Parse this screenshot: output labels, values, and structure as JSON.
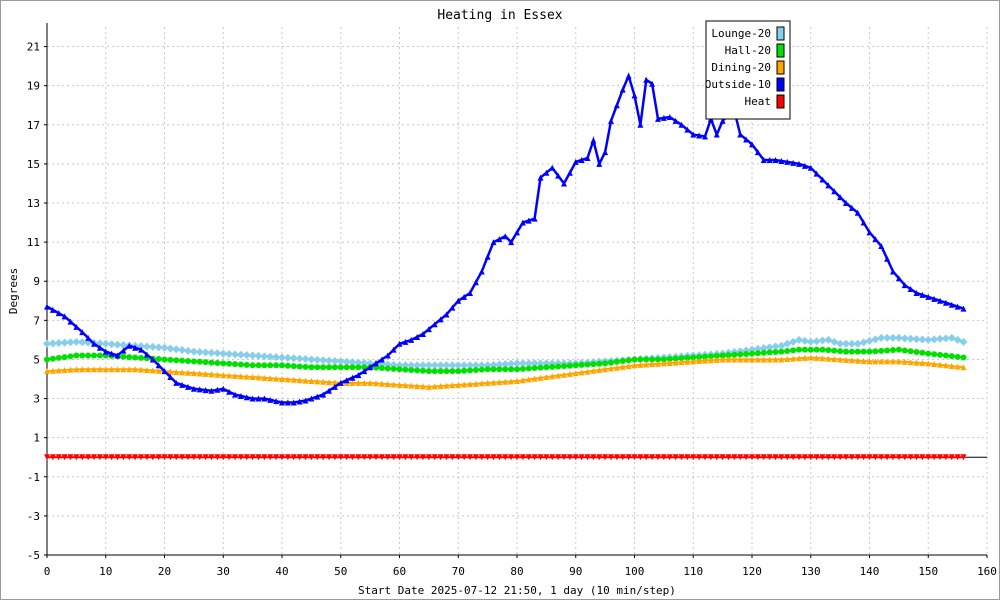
{
  "chart_data": {
    "type": "line",
    "title": "Heating in Essex",
    "xlabel": "Start Date 2025-07-12 21:50, 1 day (10 min/step)",
    "ylabel": "Degrees",
    "xlim": [
      0,
      160
    ],
    "ylim": [
      -5,
      22
    ],
    "x_ticks": [
      0,
      10,
      20,
      30,
      40,
      50,
      60,
      70,
      80,
      90,
      100,
      110,
      120,
      130,
      140,
      150,
      160
    ],
    "y_ticks": [
      -5,
      -3,
      -1,
      1,
      3,
      5,
      7,
      9,
      11,
      13,
      15,
      17,
      19,
      21
    ],
    "grid": true,
    "legend_position": "top-right",
    "series": [
      {
        "name": "Lounge-20",
        "color": "#87ceeb",
        "marker": "diamond",
        "points": [
          [
            0,
            5.8
          ],
          [
            5,
            5.9
          ],
          [
            10,
            5.8
          ],
          [
            15,
            5.7
          ],
          [
            20,
            5.6
          ],
          [
            25,
            5.4
          ],
          [
            30,
            5.3
          ],
          [
            35,
            5.2
          ],
          [
            40,
            5.1
          ],
          [
            45,
            5.0
          ],
          [
            50,
            4.9
          ],
          [
            55,
            4.8
          ],
          [
            60,
            4.7
          ],
          [
            65,
            4.7
          ],
          [
            70,
            4.7
          ],
          [
            75,
            4.7
          ],
          [
            80,
            4.8
          ],
          [
            85,
            4.8
          ],
          [
            90,
            4.8
          ],
          [
            95,
            4.9
          ],
          [
            100,
            5.0
          ],
          [
            105,
            5.1
          ],
          [
            110,
            5.2
          ],
          [
            115,
            5.3
          ],
          [
            120,
            5.5
          ],
          [
            125,
            5.7
          ],
          [
            128,
            6.0
          ],
          [
            130,
            5.9
          ],
          [
            133,
            6.0
          ],
          [
            135,
            5.8
          ],
          [
            138,
            5.8
          ],
          [
            142,
            6.1
          ],
          [
            145,
            6.1
          ],
          [
            150,
            6.0
          ],
          [
            154,
            6.1
          ],
          [
            156,
            5.9
          ]
        ]
      },
      {
        "name": "Hall-20",
        "color": "#00e000",
        "marker": "circle",
        "points": [
          [
            0,
            5.0
          ],
          [
            5,
            5.2
          ],
          [
            10,
            5.2
          ],
          [
            15,
            5.1
          ],
          [
            20,
            5.0
          ],
          [
            25,
            4.9
          ],
          [
            30,
            4.8
          ],
          [
            35,
            4.7
          ],
          [
            40,
            4.7
          ],
          [
            45,
            4.6
          ],
          [
            50,
            4.6
          ],
          [
            55,
            4.6
          ],
          [
            60,
            4.5
          ],
          [
            65,
            4.4
          ],
          [
            70,
            4.4
          ],
          [
            75,
            4.5
          ],
          [
            80,
            4.5
          ],
          [
            85,
            4.6
          ],
          [
            90,
            4.7
          ],
          [
            95,
            4.8
          ],
          [
            100,
            5.0
          ],
          [
            105,
            5.0
          ],
          [
            110,
            5.1
          ],
          [
            115,
            5.2
          ],
          [
            120,
            5.3
          ],
          [
            125,
            5.4
          ],
          [
            128,
            5.5
          ],
          [
            132,
            5.5
          ],
          [
            136,
            5.4
          ],
          [
            140,
            5.4
          ],
          [
            145,
            5.5
          ],
          [
            150,
            5.3
          ],
          [
            156,
            5.1
          ]
        ]
      },
      {
        "name": "Dining-20",
        "color": "#ffa500",
        "marker": "triangle-up",
        "points": [
          [
            0,
            4.4
          ],
          [
            5,
            4.5
          ],
          [
            10,
            4.5
          ],
          [
            15,
            4.5
          ],
          [
            20,
            4.4
          ],
          [
            25,
            4.3
          ],
          [
            30,
            4.2
          ],
          [
            35,
            4.1
          ],
          [
            40,
            4.0
          ],
          [
            45,
            3.9
          ],
          [
            50,
            3.8
          ],
          [
            55,
            3.8
          ],
          [
            60,
            3.7
          ],
          [
            65,
            3.6
          ],
          [
            70,
            3.7
          ],
          [
            75,
            3.8
          ],
          [
            80,
            3.9
          ],
          [
            85,
            4.1
          ],
          [
            90,
            4.3
          ],
          [
            95,
            4.5
          ],
          [
            100,
            4.7
          ],
          [
            105,
            4.8
          ],
          [
            110,
            4.9
          ],
          [
            115,
            5.0
          ],
          [
            120,
            5.0
          ],
          [
            125,
            5.0
          ],
          [
            130,
            5.1
          ],
          [
            135,
            5.0
          ],
          [
            140,
            4.9
          ],
          [
            145,
            4.9
          ],
          [
            150,
            4.8
          ],
          [
            156,
            4.6
          ]
        ]
      },
      {
        "name": "Outside-10",
        "color": "#0000ff",
        "marker": "triangle-up",
        "points": [
          [
            0,
            7.7
          ],
          [
            3,
            7.2
          ],
          [
            6,
            6.4
          ],
          [
            8,
            5.8
          ],
          [
            10,
            5.4
          ],
          [
            12,
            5.2
          ],
          [
            14,
            5.7
          ],
          [
            16,
            5.5
          ],
          [
            18,
            5.0
          ],
          [
            20,
            4.4
          ],
          [
            22,
            3.8
          ],
          [
            25,
            3.5
          ],
          [
            28,
            3.4
          ],
          [
            30,
            3.5
          ],
          [
            32,
            3.2
          ],
          [
            35,
            3.0
          ],
          [
            37,
            3.0
          ],
          [
            40,
            2.8
          ],
          [
            42,
            2.8
          ],
          [
            44,
            2.9
          ],
          [
            47,
            3.2
          ],
          [
            50,
            3.8
          ],
          [
            53,
            4.2
          ],
          [
            56,
            4.8
          ],
          [
            58,
            5.2
          ],
          [
            60,
            5.8
          ],
          [
            62,
            6.0
          ],
          [
            64,
            6.3
          ],
          [
            66,
            6.8
          ],
          [
            68,
            7.3
          ],
          [
            70,
            8.0
          ],
          [
            72,
            8.4
          ],
          [
            74,
            9.5
          ],
          [
            76,
            11.0
          ],
          [
            78,
            11.3
          ],
          [
            79,
            11.0
          ],
          [
            81,
            12.0
          ],
          [
            83,
            12.2
          ],
          [
            84,
            14.3
          ],
          [
            86,
            14.8
          ],
          [
            88,
            14.0
          ],
          [
            90,
            15.1
          ],
          [
            92,
            15.3
          ],
          [
            93,
            16.2
          ],
          [
            94,
            15.0
          ],
          [
            95,
            15.6
          ],
          [
            96,
            17.2
          ],
          [
            98,
            18.8
          ],
          [
            99,
            19.5
          ],
          [
            100,
            18.5
          ],
          [
            101,
            17.0
          ],
          [
            102,
            19.3
          ],
          [
            103,
            19.1
          ],
          [
            104,
            17.3
          ],
          [
            106,
            17.4
          ],
          [
            108,
            17.0
          ],
          [
            110,
            16.5
          ],
          [
            112,
            16.4
          ],
          [
            113,
            17.3
          ],
          [
            114,
            16.5
          ],
          [
            115,
            17.2
          ],
          [
            116,
            17.5
          ],
          [
            117,
            17.7
          ],
          [
            118,
            16.5
          ],
          [
            120,
            16.0
          ],
          [
            122,
            15.2
          ],
          [
            124,
            15.2
          ],
          [
            126,
            15.1
          ],
          [
            128,
            15.0
          ],
          [
            130,
            14.8
          ],
          [
            132,
            14.2
          ],
          [
            134,
            13.6
          ],
          [
            136,
            13.0
          ],
          [
            138,
            12.5
          ],
          [
            140,
            11.5
          ],
          [
            142,
            10.8
          ],
          [
            144,
            9.5
          ],
          [
            146,
            8.8
          ],
          [
            148,
            8.4
          ],
          [
            150,
            8.2
          ],
          [
            152,
            8.0
          ],
          [
            154,
            7.8
          ],
          [
            156,
            7.6
          ]
        ]
      },
      {
        "name": "Heat",
        "color": "#ff0000",
        "marker": "triangle-down",
        "points": [
          [
            0,
            0.0
          ],
          [
            156,
            0.0
          ]
        ]
      }
    ]
  }
}
